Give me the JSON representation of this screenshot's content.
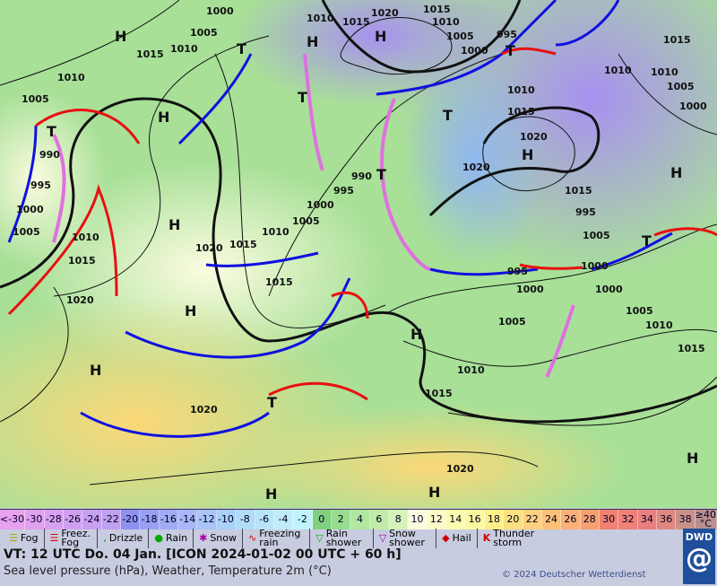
{
  "map": {
    "highs_lows": [
      "H",
      "H",
      "H",
      "H",
      "H",
      "H",
      "H",
      "H",
      "H",
      "H",
      "H",
      "H",
      "H",
      "T",
      "T",
      "T",
      "T",
      "T",
      "T",
      "T",
      "T"
    ],
    "pressure_labels": [
      "1000",
      "1005",
      "1010",
      "1015",
      "1020",
      "1015",
      "1010",
      "1015",
      "1010",
      "1005",
      "995",
      "1000",
      "1005",
      "1010",
      "1015",
      "990",
      "995",
      "1000",
      "1005",
      "1010",
      "1015",
      "1020",
      "1015",
      "1010",
      "1005",
      "1000",
      "995",
      "990",
      "995",
      "1000",
      "1005",
      "1010",
      "1015",
      "1020",
      "1020",
      "1020",
      "1015",
      "1010",
      "1005",
      "1000",
      "995",
      "1000",
      "1005",
      "1010",
      "1015",
      "1010",
      "1015",
      "1020",
      "1020",
      "1015",
      "1010",
      "1005",
      "1000"
    ]
  },
  "colors": {
    "front_cold": "#1010e0",
    "front_warm": "#e81010",
    "front_occluded": "#e070e0",
    "isobar": "#111111"
  },
  "scale": {
    "unit": "°C",
    "cells": [
      {
        "label": "<-30",
        "color": "#e8a0f0"
      },
      {
        "label": "-30",
        "color": "#e0a0f0"
      },
      {
        "label": "-28",
        "color": "#d8a0f0"
      },
      {
        "label": "-26",
        "color": "#d0a0f0"
      },
      {
        "label": "-24",
        "color": "#c8a0f0"
      },
      {
        "label": "-22",
        "color": "#c0a0f0"
      },
      {
        "label": "-20",
        "color": "#9090f0"
      },
      {
        "label": "-18",
        "color": "#98a0f4"
      },
      {
        "label": "-16",
        "color": "#a0acf4"
      },
      {
        "label": "-14",
        "color": "#a8b8f8"
      },
      {
        "label": "-12",
        "color": "#a8c4f8"
      },
      {
        "label": "-10",
        "color": "#a8d0f8"
      },
      {
        "label": "-8",
        "color": "#b0dcf8"
      },
      {
        "label": "-6",
        "color": "#b8e4f8"
      },
      {
        "label": "-4",
        "color": "#c0ecf8"
      },
      {
        "label": "-2",
        "color": "#c0f4fc"
      },
      {
        "label": "0",
        "color": "#80d080"
      },
      {
        "label": "2",
        "color": "#98dc90"
      },
      {
        "label": "4",
        "color": "#b0e8a0"
      },
      {
        "label": "6",
        "color": "#c0eca8"
      },
      {
        "label": "8",
        "color": "#d4f4b8"
      },
      {
        "label": "10",
        "color": "#fcfce0"
      },
      {
        "label": "12",
        "color": "#fcfcc8"
      },
      {
        "label": "14",
        "color": "#fcfcb0"
      },
      {
        "label": "16",
        "color": "#fcf8a0"
      },
      {
        "label": "18",
        "color": "#fcf088"
      },
      {
        "label": "20",
        "color": "#fce080"
      },
      {
        "label": "22",
        "color": "#fcd080"
      },
      {
        "label": "24",
        "color": "#fcc078"
      },
      {
        "label": "26",
        "color": "#fcb078"
      },
      {
        "label": "28",
        "color": "#f8a070"
      },
      {
        "label": "30",
        "color": "#f08070"
      },
      {
        "label": "32",
        "color": "#f08078"
      },
      {
        "label": "34",
        "color": "#e88080"
      },
      {
        "label": "36",
        "color": "#e08880"
      },
      {
        "label": "38",
        "color": "#c89088"
      },
      {
        "label": "≥40 °C",
        "color": "#b89090"
      }
    ]
  },
  "legend": [
    "Fog",
    "Freez. Fog",
    "Drizzle",
    "Rain",
    "Snow",
    "Freezing rain",
    "Rain shower",
    "Snow shower",
    "Hail",
    "Thunder storm"
  ],
  "footer": {
    "valid_time": "VT: 12 UTC Do.  04 Jan. [ICON 2024-01-02  00 UTC + 60 h]",
    "subtitle": "Sea level pressure (hPa), Weather, Temperature 2m (°C)",
    "copyright": "© 2024 Deutscher Wetterdienst",
    "logo": "DWD"
  }
}
